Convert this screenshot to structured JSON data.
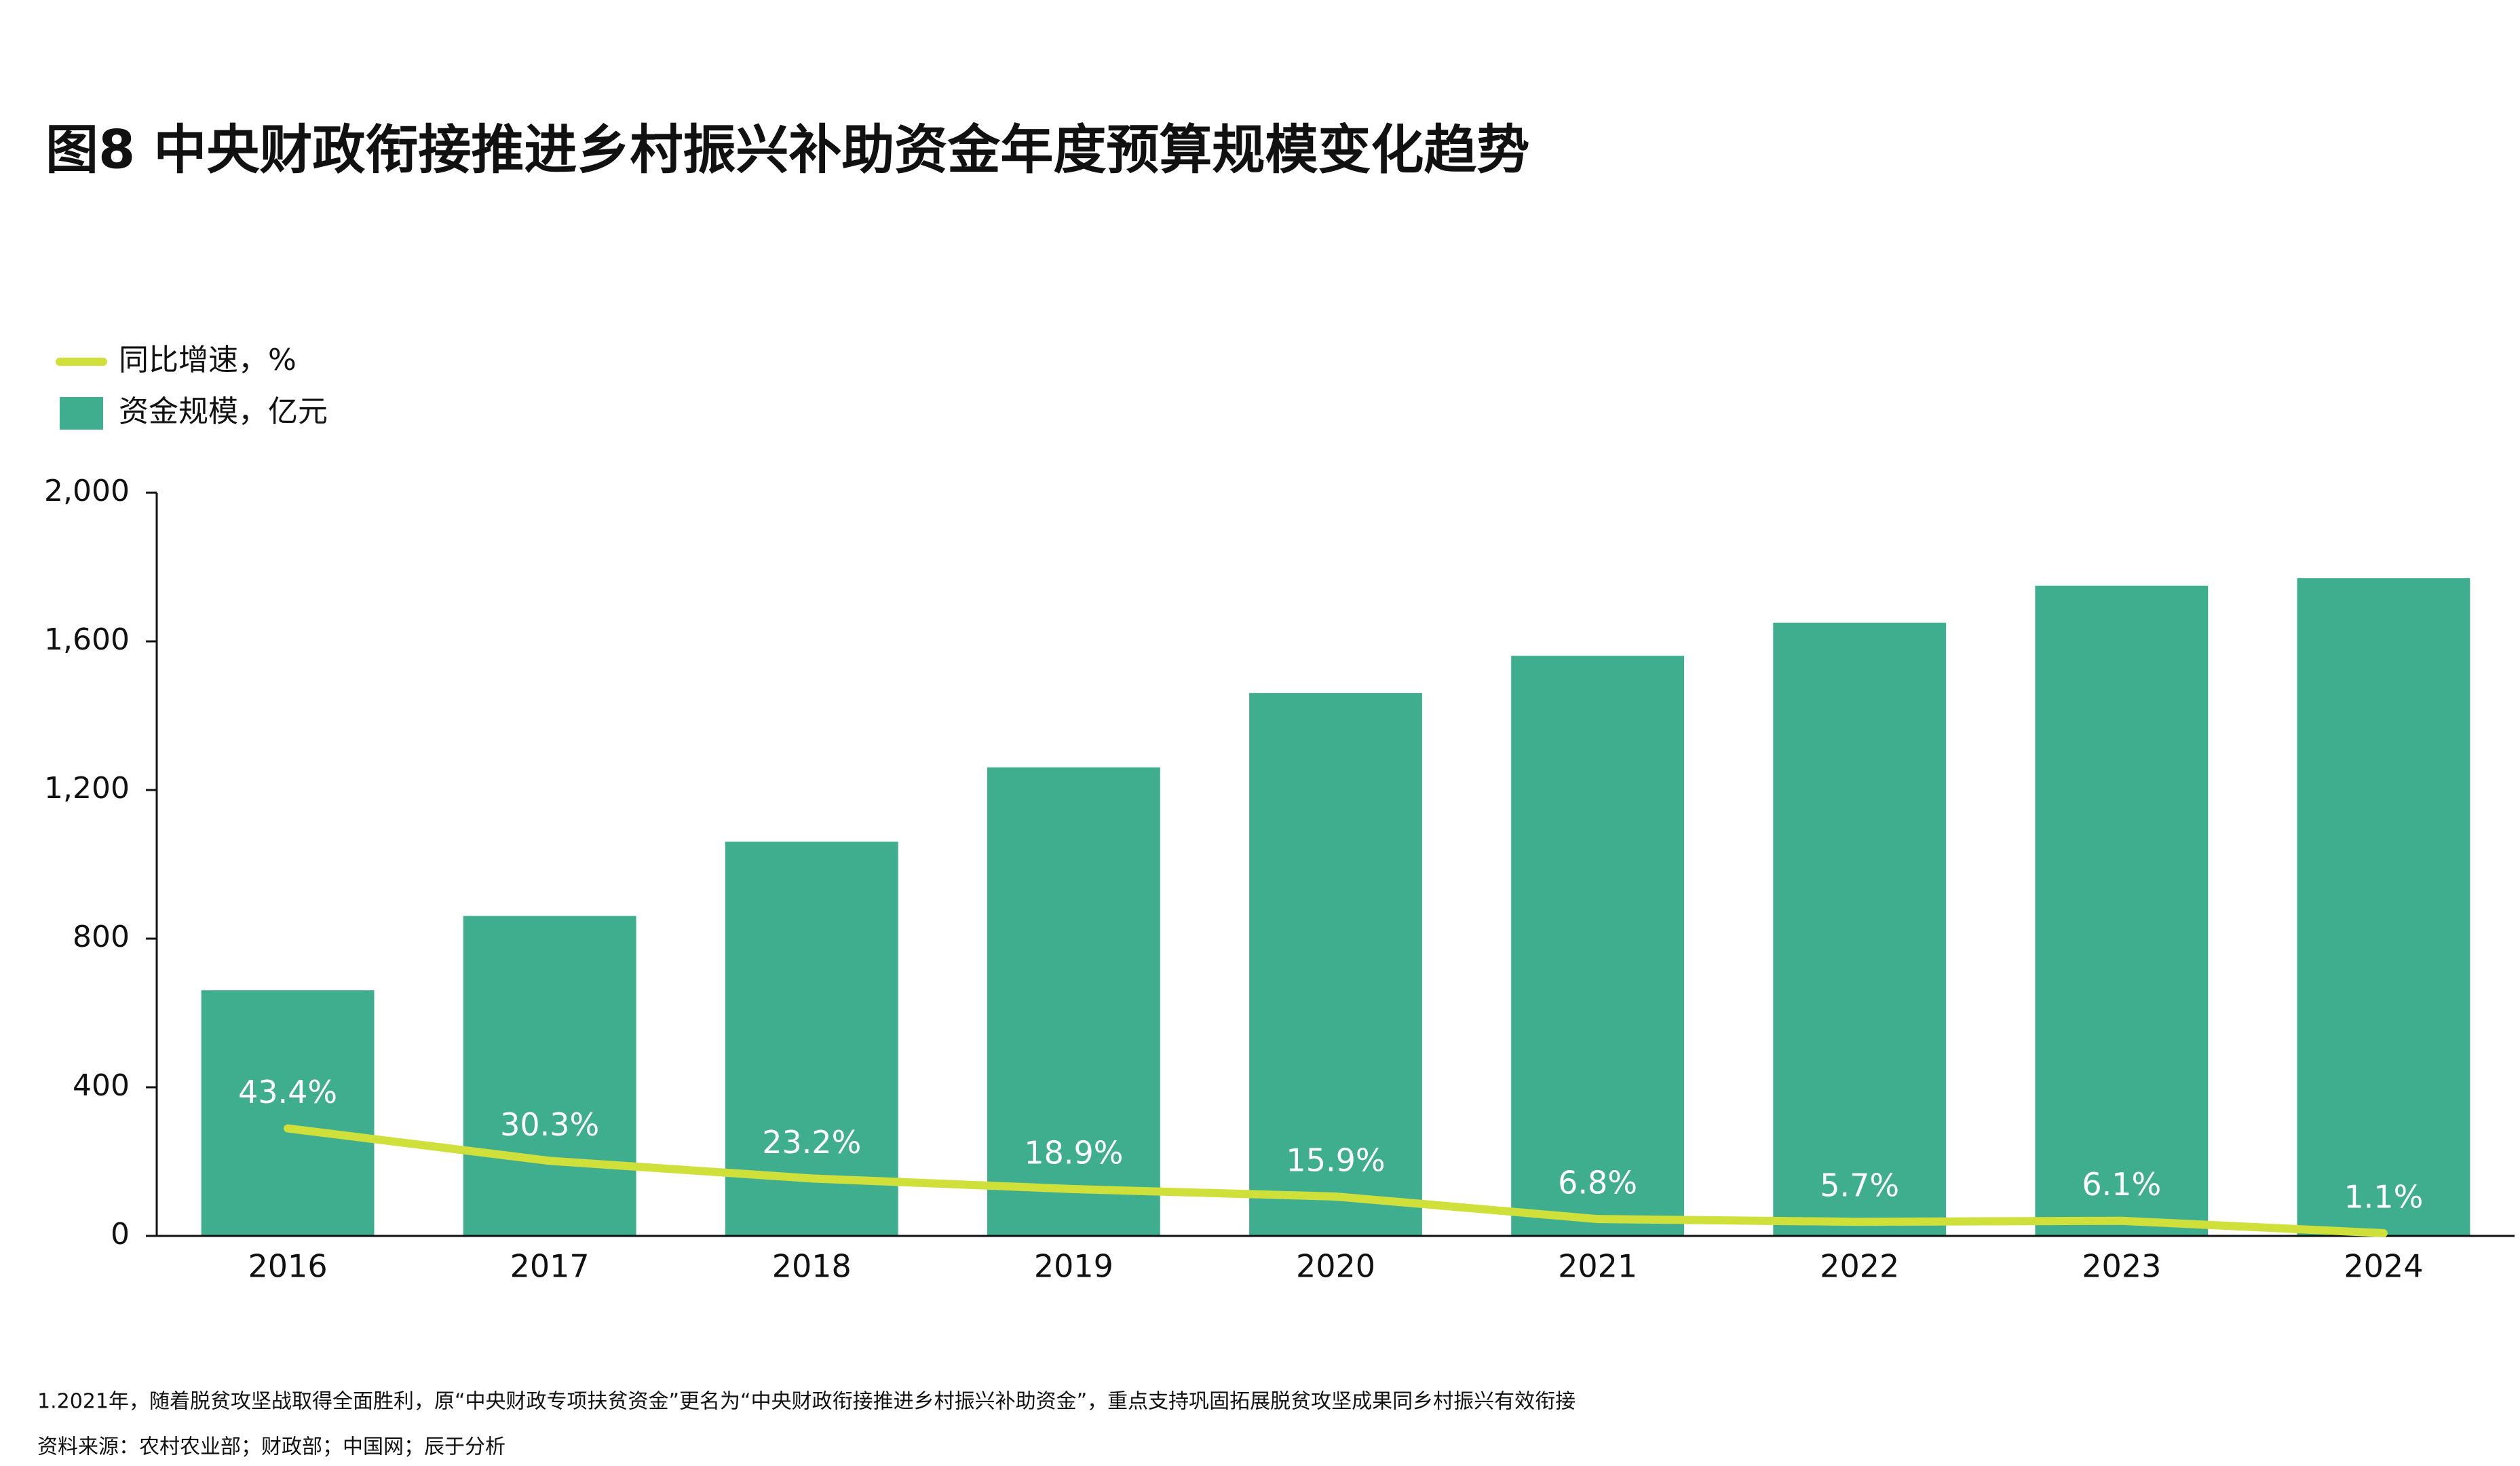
{
  "chart_data": {
    "type": "bar_line",
    "title": "图8 中央财政衔接推进乡村振兴补助资金年度预算规模变化趋势",
    "categories": [
      "2016",
      "2017",
      "2018",
      "2019",
      "2020",
      "2021",
      "2022",
      "2023",
      "2024"
    ],
    "series": [
      {
        "name": "同比增速，%",
        "type": "line",
        "axis": "y2",
        "color": "#cfe03a",
        "values": [
          43.4,
          30.3,
          23.2,
          18.9,
          15.9,
          6.8,
          5.7,
          6.1,
          1.1
        ],
        "value_labels": [
          "43.4%",
          "30.3%",
          "23.2%",
          "18.9%",
          "15.9%",
          "6.8%",
          "5.7%",
          "6.1%",
          "1.1%"
        ]
      },
      {
        "name": "资金规模，亿元",
        "type": "bar",
        "color": "#3fae8f",
        "values": [
          661,
          861,
          1061,
          1261,
          1461,
          1561,
          1650,
          1750,
          1770
        ]
      }
    ],
    "ylim": [
      0,
      2000
    ],
    "yticks": [
      0,
      400,
      800,
      {
        "value": 1200,
        "label": "1,200"
      },
      {
        "value": 1600,
        "label": "1,600"
      },
      {
        "value": 2000,
        "label": "2,000"
      }
    ],
    "y2lim": [
      0,
      300
    ],
    "grid": false,
    "notes": [
      "1.2021年，随着脱贫攻坚战取得全面胜利，原“中央财政专项扶贫资金”更名为“中央财政衔接推进乡村振兴补助资金”，重点支持巩固拓展脱贫攻坚成果同乡村振兴有效衔接",
      "资料来源：农村农业部；财政部；中国网；辰于分析"
    ]
  }
}
